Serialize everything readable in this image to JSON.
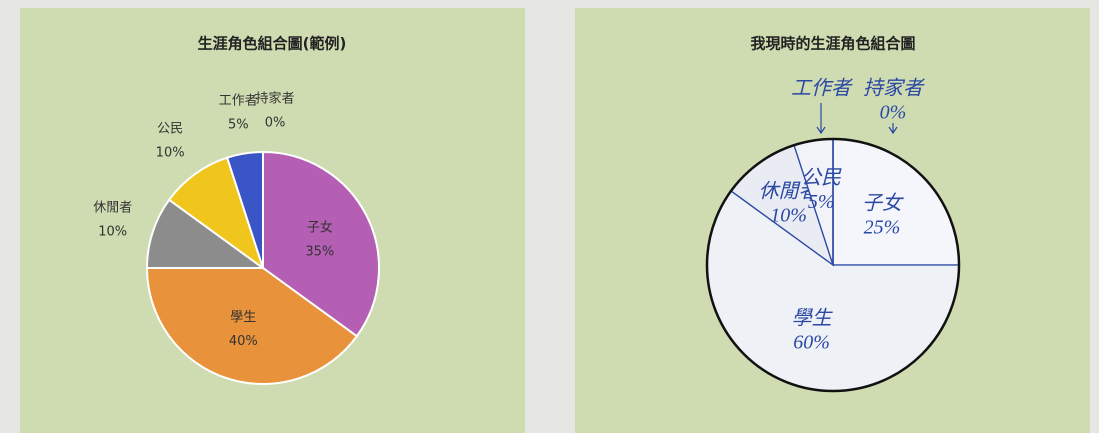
{
  "chart_data": [
    {
      "type": "pie",
      "title": "生涯角色組合圖(範例)",
      "categories": [
        "子女",
        "學生",
        "休閒者",
        "公民",
        "工作者",
        "持家者"
      ],
      "values": [
        35,
        40,
        10,
        10,
        5,
        0
      ],
      "value_labels": [
        "35%",
        "40%",
        "10%",
        "10%",
        "5%",
        "0%"
      ],
      "colors": [
        "#b45fb3",
        "#e8923b",
        "#8c8c8c",
        "#f0c51c",
        "#3a55c6",
        "#777777"
      ]
    },
    {
      "type": "pie",
      "title": "我現時的生涯角色組合圖",
      "categories": [
        "子女",
        "學生",
        "休閒者",
        "公民",
        "工作者",
        "持家者"
      ],
      "values": [
        25,
        60,
        10,
        5,
        0,
        0
      ],
      "value_labels": [
        "25%",
        "60%",
        "10%",
        "5%",
        null,
        "0%"
      ],
      "colors": [
        "#f4f6fb",
        "#eef1f6",
        "#e9ecf3",
        "#f1f3f8",
        "#f1f3f8",
        "#f1f3f8"
      ]
    }
  ]
}
